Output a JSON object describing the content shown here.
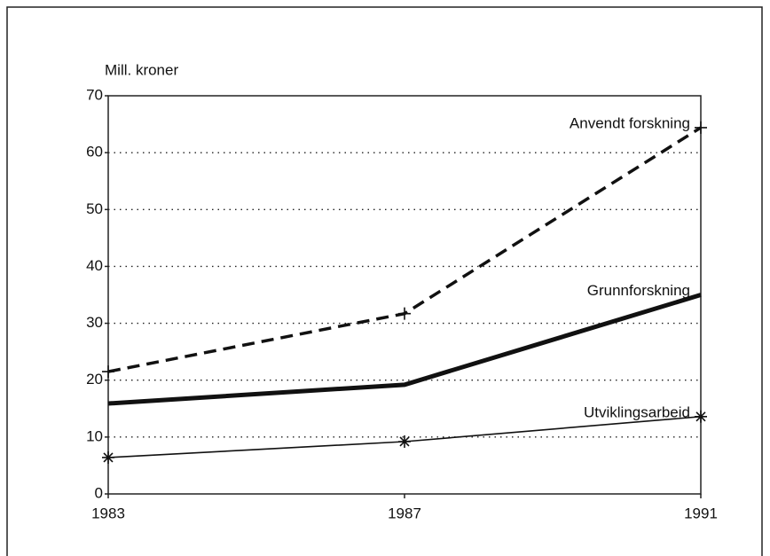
{
  "chart_data": {
    "type": "line",
    "y_label": "Mill. kroner",
    "x": [
      1983,
      1987,
      1991
    ],
    "xlim": [
      1983,
      1991
    ],
    "xticks": [
      1983,
      1987,
      1991
    ],
    "ylim": [
      0,
      70
    ],
    "yticks": [
      0,
      10,
      20,
      30,
      40,
      50,
      60,
      70
    ],
    "grid": true,
    "series": [
      {
        "name": "Anvendt forskning",
        "color": "#111111",
        "style": "dashed",
        "marker": "plus",
        "values": [
          21.5,
          31.7,
          64.4
        ]
      },
      {
        "name": "Grunnforskning",
        "color": "#111111",
        "style": "bold",
        "marker": "none",
        "values": [
          15.9,
          19.2,
          35.0
        ]
      },
      {
        "name": "Utviklingsarbeid",
        "color": "#111111",
        "style": "thin",
        "marker": "star",
        "values": [
          6.4,
          9.2,
          13.6
        ]
      }
    ]
  }
}
